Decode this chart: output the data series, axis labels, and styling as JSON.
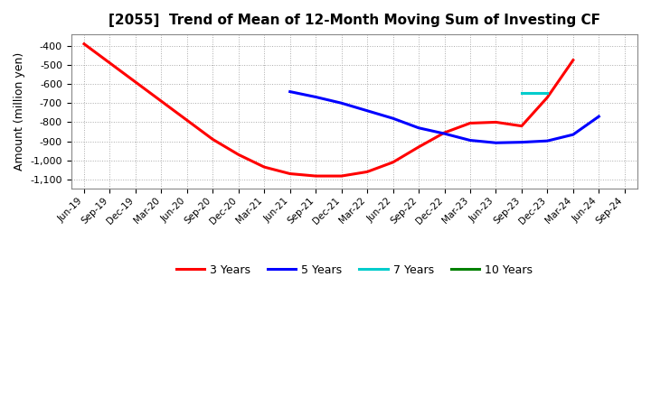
{
  "title": "[2055]  Trend of Mean of 12-Month Moving Sum of Investing CF",
  "ylabel": "Amount (million yen)",
  "ylim": [
    -1150,
    -340
  ],
  "yticks": [
    -400,
    -500,
    -600,
    -700,
    -800,
    -900,
    -1000,
    -1100
  ],
  "background_color": "#ffffff",
  "grid_color": "#aaaaaa",
  "x_labels": [
    "Jun-19",
    "Sep-19",
    "Dec-19",
    "Mar-20",
    "Jun-20",
    "Sep-20",
    "Dec-20",
    "Mar-21",
    "Jun-21",
    "Sep-21",
    "Dec-21",
    "Mar-22",
    "Jun-22",
    "Sep-22",
    "Dec-22",
    "Mar-23",
    "Jun-23",
    "Sep-23",
    "Dec-23",
    "Mar-24",
    "Jun-24",
    "Sep-24"
  ],
  "series_3yr": {
    "label": "3 Years",
    "color": "#ff0000",
    "x": [
      0,
      1,
      2,
      3,
      4,
      5,
      6,
      7,
      8,
      9,
      10,
      11,
      12,
      13,
      14,
      15,
      16,
      17,
      18,
      19
    ],
    "y": [
      -390,
      -490,
      -590,
      -690,
      -790,
      -890,
      -970,
      -1035,
      -1070,
      -1082,
      -1082,
      -1060,
      -1010,
      -930,
      -855,
      -805,
      -800,
      -820,
      -670,
      -475
    ]
  },
  "series_5yr": {
    "label": "5 Years",
    "color": "#0000ff",
    "x": [
      8,
      9,
      10,
      11,
      12,
      13,
      14,
      15,
      16,
      17,
      18,
      19,
      20
    ],
    "y": [
      -640,
      -668,
      -700,
      -740,
      -780,
      -830,
      -860,
      -895,
      -908,
      -905,
      -898,
      -865,
      -770
    ]
  },
  "series_7yr": {
    "label": "7 Years",
    "color": "#00cccc",
    "x": [
      17,
      18
    ],
    "y": [
      -645,
      -645
    ]
  },
  "series_10yr": {
    "label": "10 Years",
    "color": "#008000",
    "x": [],
    "y": []
  }
}
